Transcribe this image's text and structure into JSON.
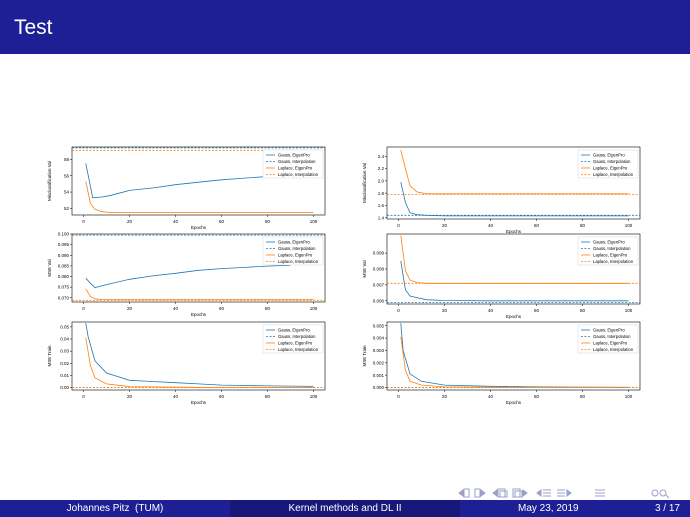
{
  "slide": {
    "title": "Test",
    "footer": {
      "author": "Johannes Pitz",
      "affiliation": "(TUM)",
      "talk_title": "Kernel methods and DL II",
      "date": "May 23, 2019",
      "page": "3 / 17"
    },
    "nav_icons": [
      "frame-prev-icon",
      "frame-next-icon",
      "subsection-prev-icon",
      "subsection-next-icon",
      "section-prev-icon",
      "section-next-icon",
      "search-icon",
      "appendix-icon"
    ]
  },
  "colors": {
    "header_bg": "#1f1f95",
    "gauss": "#1f77b4",
    "laplace": "#ff7f0e"
  },
  "legend": [
    "Gauss, EigenPro",
    "Gauss, Interpolation",
    "Laplace, EigenPro",
    "Laplace, Interpolation"
  ],
  "chart_data": [
    {
      "type": "line",
      "panel": "left-top",
      "xlabel": "Epochs",
      "ylabel": "Misclassification Val",
      "xlim": [
        -5,
        105
      ],
      "ylim": [
        51.2,
        59.5
      ],
      "xticks": [
        0,
        20,
        40,
        60,
        80,
        100
      ],
      "yticks": [
        52,
        54,
        56,
        58
      ],
      "yticklabels": [
        "52",
        "54",
        "56",
        "58"
      ],
      "series": [
        {
          "name": "Gauss, EigenPro",
          "color": "#1f77b4",
          "dash": false,
          "x": [
            1,
            4,
            8,
            12,
            20,
            30,
            40,
            50,
            60,
            70,
            80,
            90
          ],
          "y": [
            57.5,
            53.3,
            53.4,
            53.6,
            54.2,
            54.5,
            54.9,
            55.2,
            55.5,
            55.7,
            55.9,
            56.2
          ]
        },
        {
          "name": "Gauss, Interpolation",
          "color": "#1f77b4",
          "dash": true,
          "x": [
            -5,
            105
          ],
          "y": [
            59.4,
            59.4
          ]
        },
        {
          "name": "Laplace, EigenPro",
          "color": "#ff7f0e",
          "dash": false,
          "x": [
            1,
            3,
            5,
            8,
            12,
            20,
            40,
            60,
            80,
            100
          ],
          "y": [
            55.3,
            52.6,
            51.9,
            51.6,
            51.5,
            51.5,
            51.5,
            51.5,
            51.5,
            51.5
          ]
        },
        {
          "name": "Laplace, Interpolation",
          "color": "#ff7f0e",
          "dash": true,
          "x": [
            -5,
            105
          ],
          "y": [
            59.1,
            59.1
          ]
        }
      ]
    },
    {
      "type": "line",
      "panel": "right-top",
      "xlabel": "Epochs",
      "ylabel": "Misclassification Val",
      "xlim": [
        -5,
        105
      ],
      "ylim": [
        1.38,
        2.55
      ],
      "xticks": [
        0,
        20,
        40,
        60,
        80,
        100
      ],
      "yticks": [
        1.4,
        1.6,
        1.8,
        2.0,
        2.2,
        2.4
      ],
      "yticklabels": [
        "1.4",
        "1.6",
        "1.8",
        "2.0",
        "2.2",
        "2.4"
      ],
      "series": [
        {
          "name": "Gauss, EigenPro",
          "color": "#1f77b4",
          "dash": false,
          "x": [
            1,
            3,
            5,
            8,
            12,
            20,
            40,
            60,
            80,
            100
          ],
          "y": [
            1.98,
            1.65,
            1.48,
            1.45,
            1.44,
            1.43,
            1.43,
            1.43,
            1.43,
            1.43
          ]
        },
        {
          "name": "Gauss, Interpolation",
          "color": "#1f77b4",
          "dash": true,
          "x": [
            -5,
            105
          ],
          "y": [
            1.44,
            1.44
          ]
        },
        {
          "name": "Laplace, EigenPro",
          "color": "#ff7f0e",
          "dash": false,
          "x": [
            1,
            3,
            5,
            8,
            12,
            20,
            40,
            60,
            80,
            100
          ],
          "y": [
            2.5,
            2.2,
            1.92,
            1.82,
            1.79,
            1.79,
            1.79,
            1.79,
            1.79,
            1.79
          ]
        },
        {
          "name": "Laplace, Interpolation",
          "color": "#ff7f0e",
          "dash": true,
          "x": [
            -5,
            105
          ],
          "y": [
            1.78,
            1.78
          ]
        }
      ]
    },
    {
      "type": "line",
      "panel": "left-middle",
      "xlabel": "Epochs",
      "ylabel": "MSE Val",
      "xlim": [
        -5,
        105
      ],
      "ylim": [
        0.068,
        0.1
      ],
      "xticks": [
        0,
        20,
        40,
        60,
        80,
        100
      ],
      "yticks": [
        0.07,
        0.075,
        0.08,
        0.085,
        0.09,
        0.095,
        0.1
      ],
      "yticklabels": [
        "0.070",
        "0.075",
        "0.080",
        "0.085",
        "0.090",
        "0.095",
        "0.100"
      ],
      "series": [
        {
          "name": "Gauss, EigenPro",
          "color": "#1f77b4",
          "dash": false,
          "x": [
            1,
            3,
            5,
            10,
            20,
            30,
            40,
            50,
            60,
            70,
            80,
            90
          ],
          "y": [
            0.0792,
            0.0768,
            0.0748,
            0.0762,
            0.0787,
            0.0803,
            0.0815,
            0.0829,
            0.0837,
            0.0843,
            0.0849,
            0.0853
          ]
        },
        {
          "name": "Gauss, Interpolation",
          "color": "#1f77b4",
          "dash": true,
          "x": [
            -5,
            105
          ],
          "y": [
            0.0995,
            0.0995
          ]
        },
        {
          "name": "Laplace, EigenPro",
          "color": "#ff7f0e",
          "dash": false,
          "x": [
            1,
            3,
            5,
            8,
            12,
            20,
            40,
            60,
            80,
            100
          ],
          "y": [
            0.0742,
            0.0706,
            0.0695,
            0.0692,
            0.0691,
            0.0691,
            0.0691,
            0.0691,
            0.0691,
            0.0691
          ]
        },
        {
          "name": "Laplace, Interpolation",
          "color": "#ff7f0e",
          "dash": true,
          "x": [
            -5,
            105
          ],
          "y": [
            0.0688,
            0.0688
          ]
        }
      ]
    },
    {
      "type": "line",
      "panel": "right-middle",
      "xlabel": "Epochs",
      "ylabel": "MSE Val",
      "xlim": [
        -5,
        105
      ],
      "ylim": [
        0.0058,
        0.0102
      ],
      "xticks": [
        0,
        20,
        40,
        60,
        80,
        100
      ],
      "yticks": [
        0.006,
        0.007,
        0.008,
        0.009
      ],
      "yticklabels": [
        "0.006",
        "0.007",
        "0.008",
        "0.009"
      ],
      "series": [
        {
          "name": "Gauss, EigenPro",
          "color": "#1f77b4",
          "dash": false,
          "x": [
            1,
            3,
            5,
            8,
            12,
            20,
            40,
            60,
            80,
            100
          ],
          "y": [
            0.0085,
            0.0067,
            0.0063,
            0.0062,
            0.00607,
            0.00602,
            0.006,
            0.006,
            0.006,
            0.006
          ]
        },
        {
          "name": "Gauss, Interpolation",
          "color": "#1f77b4",
          "dash": true,
          "x": [
            -5,
            105
          ],
          "y": [
            0.0059,
            0.0059
          ]
        },
        {
          "name": "Laplace, EigenPro",
          "color": "#ff7f0e",
          "dash": false,
          "x": [
            1,
            3,
            5,
            8,
            12,
            20,
            40,
            60,
            80,
            100
          ],
          "y": [
            0.0101,
            0.0079,
            0.0073,
            0.00715,
            0.0071,
            0.0071,
            0.0071,
            0.0071,
            0.0071,
            0.0071
          ]
        },
        {
          "name": "Laplace, Interpolation",
          "color": "#ff7f0e",
          "dash": true,
          "x": [
            -5,
            105
          ],
          "y": [
            0.0071,
            0.0071
          ]
        }
      ]
    },
    {
      "type": "line",
      "panel": "left-bottom",
      "xlabel": "Epochs",
      "ylabel": "MSE Train",
      "xlim": [
        -5,
        105
      ],
      "ylim": [
        -0.002,
        0.054
      ],
      "xticks": [
        0,
        20,
        40,
        60,
        80,
        100
      ],
      "yticks": [
        0,
        0.01,
        0.02,
        0.03,
        0.04,
        0.05
      ],
      "yticklabels": [
        "0.00",
        "0.01",
        "0.02",
        "0.03",
        "0.04",
        "0.05"
      ],
      "series": [
        {
          "name": "Gauss, EigenPro",
          "color": "#1f77b4",
          "dash": false,
          "x": [
            1,
            2,
            5,
            10,
            20,
            30,
            40,
            50,
            60,
            70,
            80,
            90,
            100
          ],
          "y": [
            0.053,
            0.042,
            0.022,
            0.012,
            0.006,
            0.005,
            0.004,
            0.003,
            0.002,
            0.0017,
            0.0014,
            0.0012,
            0.001
          ]
        },
        {
          "name": "Gauss, Interpolation",
          "color": "#1f77b4",
          "dash": true,
          "x": [
            -5,
            105
          ],
          "y": [
            0,
            0
          ]
        },
        {
          "name": "Laplace, EigenPro",
          "color": "#ff7f0e",
          "dash": false,
          "x": [
            1,
            3,
            5,
            10,
            20,
            40,
            60,
            80,
            100
          ],
          "y": [
            0.041,
            0.018,
            0.008,
            0.003,
            0.0008,
            0.0003,
            0.0001,
            0.0001,
            0.0001
          ]
        },
        {
          "name": "Laplace, Interpolation",
          "color": "#ff7f0e",
          "dash": true,
          "x": [
            -5,
            105
          ],
          "y": [
            0,
            0
          ]
        }
      ]
    },
    {
      "type": "line",
      "panel": "right-bottom",
      "xlabel": "Epochs",
      "ylabel": "MSE Train",
      "xlim": [
        -5,
        105
      ],
      "ylim": [
        -0.0002,
        0.0053
      ],
      "xticks": [
        0,
        20,
        40,
        60,
        80,
        100
      ],
      "yticks": [
        0,
        0.001,
        0.002,
        0.003,
        0.004,
        0.005
      ],
      "yticklabels": [
        "0.000",
        "0.001",
        "0.002",
        "0.003",
        "0.004",
        "0.005"
      ],
      "series": [
        {
          "name": "Gauss, EigenPro",
          "color": "#1f77b4",
          "dash": false,
          "x": [
            1,
            2,
            5,
            10,
            20,
            40,
            60,
            80,
            100
          ],
          "y": [
            0.0052,
            0.003,
            0.0011,
            0.0005,
            0.0002,
            0.0001,
            5e-05,
            3e-05,
            2e-05
          ]
        },
        {
          "name": "Gauss, Interpolation",
          "color": "#1f77b4",
          "dash": true,
          "x": [
            -5,
            105
          ],
          "y": [
            0,
            0
          ]
        },
        {
          "name": "Laplace, EigenPro",
          "color": "#ff7f0e",
          "dash": false,
          "x": [
            1,
            3,
            5,
            10,
            20,
            40,
            60,
            80,
            100
          ],
          "y": [
            0.0041,
            0.0014,
            0.0005,
            0.0002,
            5e-05,
            2e-05,
            1e-05,
            1e-05,
            1e-05
          ]
        },
        {
          "name": "Laplace, Interpolation",
          "color": "#ff7f0e",
          "dash": true,
          "x": [
            -5,
            105
          ],
          "y": [
            0,
            0
          ]
        }
      ]
    }
  ]
}
